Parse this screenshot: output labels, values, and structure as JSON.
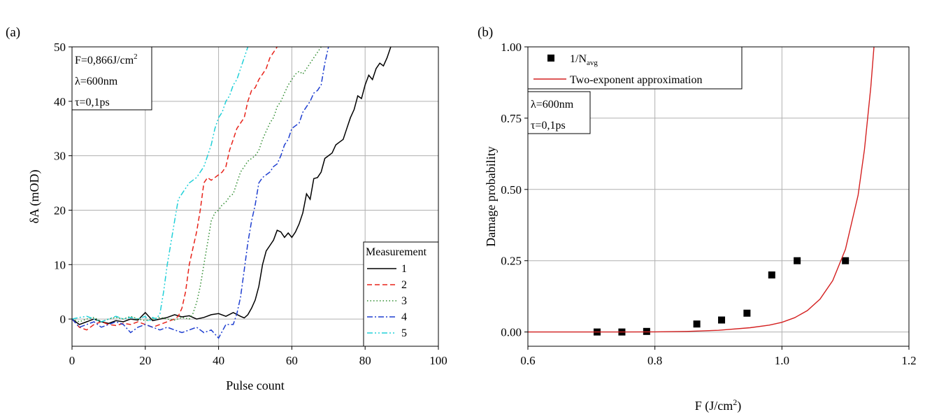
{
  "panels": [
    {
      "panel_label": "(a)",
      "annotation_lines": [
        {
          "text": "F=0,866J/cm",
          "sup": "2"
        },
        {
          "text": "λ=600nm",
          "sup": ""
        },
        {
          "text": "τ=0,1ps",
          "sup": ""
        }
      ]
    },
    {
      "panel_label": "(b)",
      "annotation_lines": [
        {
          "text": "λ=600nm",
          "sup": ""
        },
        {
          "text": "τ=0,1ps",
          "sup": ""
        }
      ]
    }
  ],
  "chart_data": [
    {
      "type": "line",
      "title": "",
      "xlabel": "Pulse count",
      "ylabel": "δA (mOD)",
      "xlim": [
        0,
        100
      ],
      "ylim": [
        -5,
        50
      ],
      "xticks": [
        0,
        20,
        40,
        60,
        80,
        100
      ],
      "yticks": [
        0,
        10,
        20,
        30,
        40,
        50
      ],
      "grid": true,
      "legend_title": "Measurement",
      "legend_position": "bottom-right",
      "series": [
        {
          "name": "1",
          "color": "#000000",
          "dash": "solid",
          "x": [
            0,
            2,
            4,
            6,
            8,
            10,
            12,
            14,
            16,
            18,
            20,
            22,
            24,
            26,
            28,
            30,
            32,
            34,
            36,
            38,
            40,
            42,
            44,
            46,
            47,
            48,
            49,
            50,
            51,
            52,
            53,
            54,
            55,
            56,
            57,
            58,
            59,
            60,
            61,
            62,
            63,
            64,
            65,
            66,
            67,
            68,
            69,
            70,
            71,
            72,
            73,
            74,
            75,
            76,
            77,
            78,
            79,
            80,
            81,
            82,
            83,
            84,
            85,
            86,
            87
          ],
          "y": [
            0,
            -1,
            -0.5,
            0,
            -0.5,
            -0.8,
            -0.3,
            -0.5,
            0,
            -0.2,
            1.2,
            -0.3,
            0,
            0.3,
            0.8,
            0.4,
            0.6,
            0,
            0.3,
            0.8,
            1,
            0.5,
            1.2,
            0.5,
            0.2,
            0.8,
            2,
            3.5,
            6,
            10,
            12.5,
            13.5,
            14.5,
            16.3,
            16,
            15,
            15.8,
            15,
            16,
            17.5,
            19.5,
            23,
            22,
            25.8,
            26,
            27,
            29.5,
            30,
            30.5,
            32,
            32.5,
            33,
            35,
            37,
            38.5,
            41,
            40.5,
            43,
            44.8,
            44,
            46,
            47,
            46.5,
            48,
            50
          ]
        },
        {
          "name": "2",
          "color": "#e8231a",
          "dash": "dashed",
          "x": [
            0,
            2,
            4,
            6,
            8,
            10,
            12,
            14,
            16,
            18,
            20,
            22,
            24,
            26,
            28,
            29,
            30,
            31,
            32,
            33,
            34,
            35,
            36,
            37,
            38,
            39,
            40,
            41,
            42,
            43,
            44,
            45,
            46,
            47,
            48,
            49,
            50,
            51,
            52,
            53,
            54,
            55,
            56
          ],
          "y": [
            0,
            -1.5,
            -2,
            -1,
            -0.5,
            -1,
            -1.2,
            -0.8,
            -1,
            -0.5,
            -1,
            -1.5,
            -1,
            -0.5,
            0,
            0.5,
            2,
            5,
            10,
            13,
            16,
            20,
            25,
            26,
            25.5,
            26,
            26.5,
            27,
            28,
            31,
            33,
            35,
            36,
            37,
            40,
            42,
            42.5,
            44,
            45,
            46,
            48,
            49,
            50
          ]
        },
        {
          "name": "3",
          "color": "#2e8b2e",
          "dash": "dotted",
          "x": [
            0,
            2,
            4,
            6,
            8,
            10,
            12,
            14,
            16,
            18,
            20,
            22,
            24,
            26,
            28,
            30,
            32,
            33,
            34,
            35,
            36,
            37,
            38,
            39,
            40,
            41,
            42,
            43,
            44,
            45,
            46,
            47,
            48,
            49,
            50,
            51,
            52,
            53,
            54,
            55,
            56,
            57,
            58,
            59,
            60,
            61,
            62,
            63,
            64,
            65,
            66,
            67,
            68
          ],
          "y": [
            0,
            -0.5,
            0,
            0.3,
            -0.5,
            0,
            0.3,
            0,
            0.5,
            0,
            -0.3,
            0,
            0.3,
            0,
            -0.2,
            0.3,
            0,
            1,
            3,
            6,
            10,
            14,
            18,
            19.5,
            20,
            21,
            21.5,
            22.5,
            23,
            25,
            27,
            28,
            29,
            29.5,
            30,
            31,
            33,
            34.5,
            36,
            37,
            39,
            40,
            41.5,
            43,
            44,
            45,
            45.5,
            45,
            46,
            47,
            48,
            49,
            50
          ]
        },
        {
          "name": "4",
          "color": "#1f3fd0",
          "dash": "dashdot",
          "x": [
            0,
            2,
            4,
            6,
            8,
            10,
            12,
            14,
            16,
            18,
            20,
            22,
            24,
            26,
            28,
            30,
            32,
            34,
            36,
            38,
            40,
            42,
            44,
            45,
            46,
            47,
            48,
            49,
            50,
            51,
            52,
            53,
            54,
            55,
            56,
            57,
            58,
            59,
            60,
            61,
            62,
            63,
            64,
            65,
            66,
            67,
            68,
            69,
            70
          ],
          "y": [
            0,
            -1.5,
            -1,
            -0.5,
            -1.5,
            -1,
            -0.5,
            -1,
            -2.5,
            -1.5,
            -1,
            -1.5,
            -2,
            -1.5,
            -2,
            -2.5,
            -2,
            -1.5,
            -2.5,
            -2,
            -3.5,
            -1,
            -1,
            1,
            4,
            9,
            14,
            18,
            21,
            25,
            26,
            26.5,
            27,
            28,
            28.5,
            30,
            32,
            33,
            35,
            35.5,
            36,
            38,
            39,
            40,
            41.5,
            42,
            43,
            47,
            50
          ]
        },
        {
          "name": "5",
          "color": "#20d0d8",
          "dash": "dashdotdot",
          "x": [
            0,
            2,
            4,
            6,
            8,
            10,
            12,
            14,
            16,
            18,
            20,
            21,
            22,
            23,
            24,
            25,
            26,
            27,
            28,
            29,
            30,
            31,
            32,
            33,
            34,
            35,
            36,
            37,
            38,
            39,
            40,
            41,
            42,
            43,
            44,
            45,
            46,
            47,
            48
          ],
          "y": [
            0,
            0.3,
            0.5,
            0,
            -0.5,
            0,
            0.5,
            0,
            0.3,
            0,
            0.5,
            -0.5,
            0.3,
            0,
            1,
            5,
            10,
            14,
            18,
            22,
            23,
            24,
            25,
            25.5,
            26,
            27,
            28,
            30,
            32,
            35,
            37,
            38,
            40,
            41,
            43,
            44,
            46,
            48,
            50
          ]
        }
      ]
    },
    {
      "type": "scatter",
      "title": "",
      "xlabel": "F (J/cm",
      "xlabel_sup": "2",
      "xlabel_suffix": ")",
      "ylabel": "Damage probability",
      "xlim": [
        0.6,
        1.2
      ],
      "ylim": [
        -0.05,
        1.0
      ],
      "xticks": [
        0.6,
        0.8,
        1.0,
        1.2
      ],
      "xtick_labels": [
        "0.6",
        "0.8",
        "1.0",
        "1.2"
      ],
      "yticks": [
        0,
        0.25,
        0.5,
        0.75,
        1.0
      ],
      "ytick_labels": [
        "0.00",
        "0.25",
        "0.50",
        "0.75",
        "1.00"
      ],
      "grid": true,
      "legend_position": "top-left",
      "series": [
        {
          "name": "1/N",
          "name_sub": "avg",
          "kind": "scatter",
          "color": "#000000",
          "x": [
            0.709,
            0.748,
            0.787,
            0.866,
            0.905,
            0.945,
            0.984,
            1.024,
            1.1
          ],
          "y": [
            0.0,
            0.0,
            0.002,
            0.028,
            0.042,
            0.066,
            0.2,
            0.25,
            0.25
          ]
        },
        {
          "name": "Two-exponent approximation",
          "kind": "line",
          "color": "#d42020",
          "x": [
            0.6,
            0.65,
            0.7,
            0.75,
            0.8,
            0.85,
            0.9,
            0.95,
            0.98,
            1.0,
            1.02,
            1.04,
            1.06,
            1.08,
            1.1,
            1.12,
            1.13,
            1.14,
            1.145
          ],
          "y": [
            0.0,
            0.0,
            0.0,
            0.0,
            0.0005,
            0.002,
            0.006,
            0.015,
            0.024,
            0.034,
            0.05,
            0.075,
            0.115,
            0.18,
            0.29,
            0.48,
            0.64,
            0.86,
            1.0
          ]
        }
      ]
    }
  ]
}
